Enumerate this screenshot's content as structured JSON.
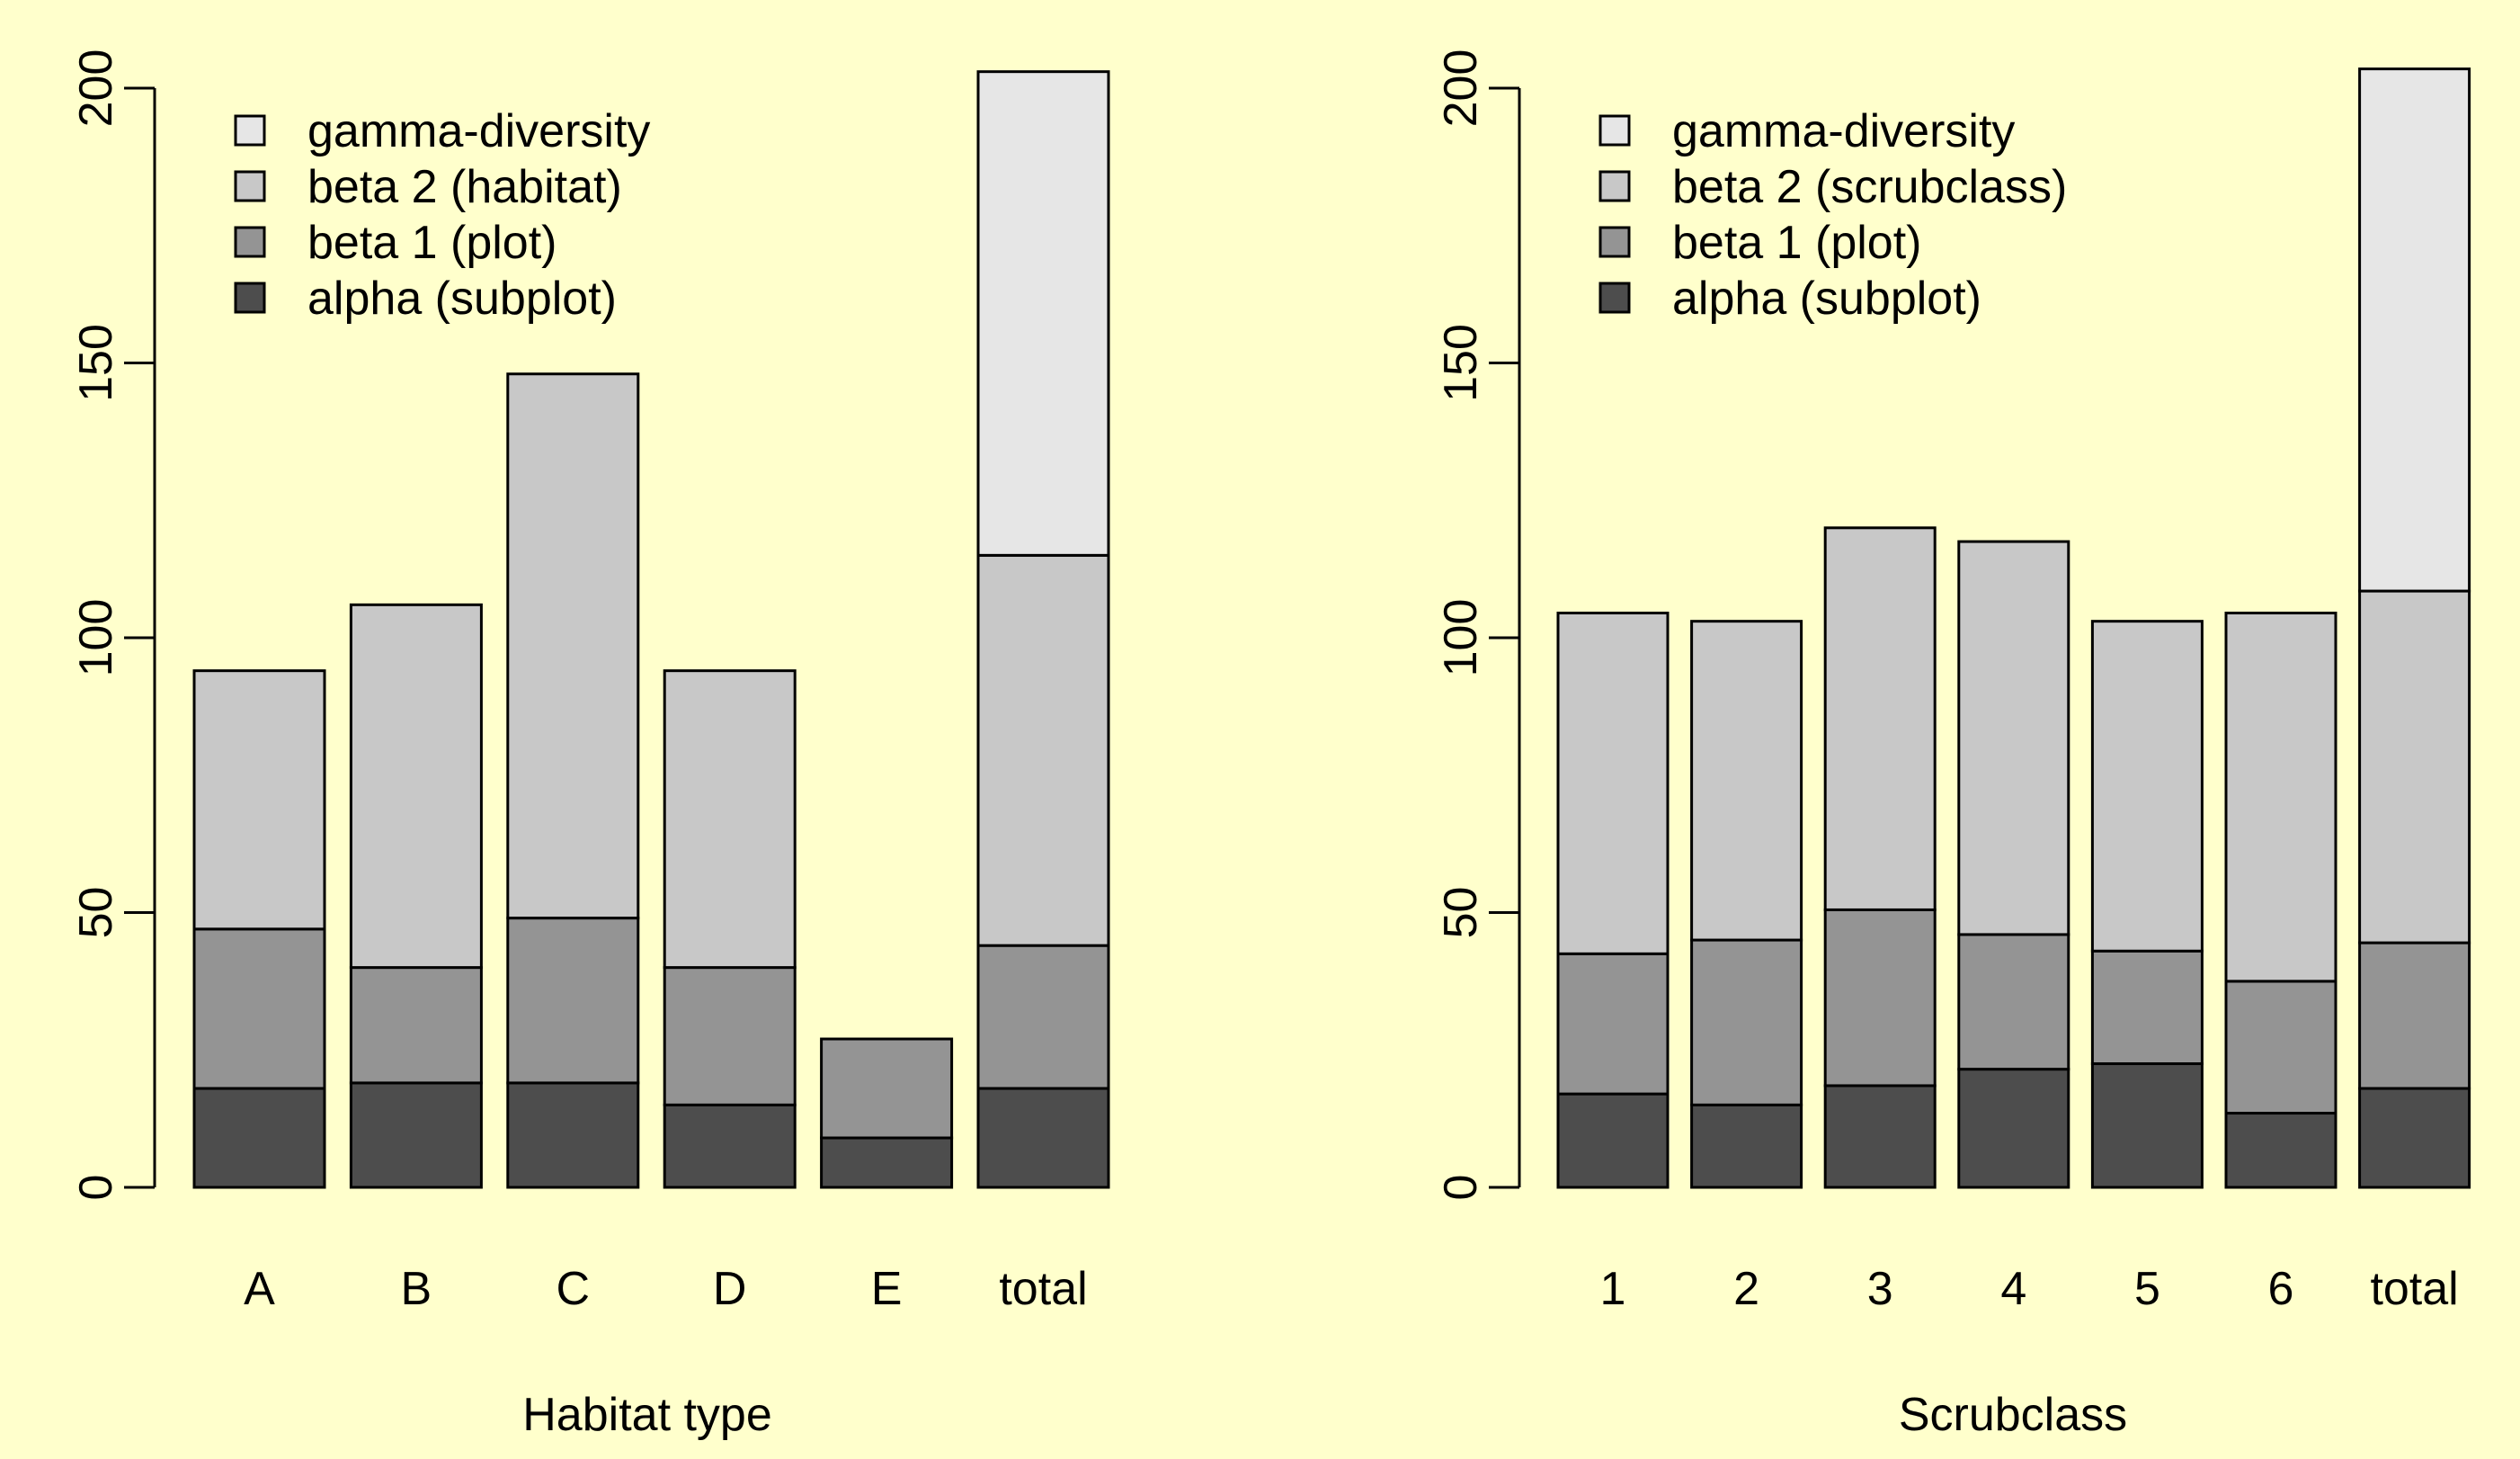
{
  "colors": {
    "background": "#ffffcc",
    "alpha": "#4d4d4d",
    "beta1": "#949494",
    "beta2": "#c8c8c8",
    "gamma": "#e6e6e6",
    "outline": "#000000"
  },
  "chart_data": [
    {
      "type": "bar",
      "stacked": true,
      "xlabel": "Habitat type",
      "ylabel": "",
      "ylim": [
        0,
        200
      ],
      "yticks": [
        "0",
        "50",
        "100",
        "150",
        "200"
      ],
      "legend_position": "top-left",
      "legend": [
        "gamma-diversity",
        "beta 2 (habitat)",
        "beta 1 (plot)",
        "alpha (subplot)"
      ],
      "categories": [
        "A",
        "B",
        "C",
        "D",
        "E",
        "total"
      ],
      "series": [
        {
          "name": "alpha (subplot)",
          "values": [
            18,
            19,
            19,
            15,
            9,
            18
          ]
        },
        {
          "name": "beta 1 (plot)",
          "values": [
            29,
            21,
            30,
            25,
            18,
            26
          ]
        },
        {
          "name": "beta 2 (habitat)",
          "values": [
            47,
            66,
            99,
            54,
            0,
            71
          ]
        },
        {
          "name": "gamma-diversity",
          "values": [
            0,
            0,
            0,
            0,
            0,
            88
          ]
        }
      ]
    },
    {
      "type": "bar",
      "stacked": true,
      "xlabel": "Scrubclass",
      "ylabel": "",
      "ylim": [
        0,
        200
      ],
      "yticks": [
        "0",
        "50",
        "100",
        "150",
        "200"
      ],
      "legend_position": "top-left",
      "legend": [
        "gamma-diversity",
        "beta 2 (scrubclass)",
        "beta 1 (plot)",
        "alpha (subplot)"
      ],
      "categories": [
        "1",
        "2",
        "3",
        "4",
        "5",
        "6",
        "total"
      ],
      "series": [
        {
          "name": "alpha (subplot)",
          "values": [
            17,
            15,
            18.5,
            21.5,
            22.5,
            13.5,
            18
          ]
        },
        {
          "name": "beta 1 (plot)",
          "values": [
            25.5,
            30,
            32,
            24.5,
            20.5,
            24,
            26.5
          ]
        },
        {
          "name": "beta 2 (scrubclass)",
          "values": [
            62,
            58,
            69.5,
            71.5,
            60,
            67,
            64
          ]
        },
        {
          "name": "gamma-diversity",
          "values": [
            0,
            0,
            0,
            0,
            0,
            0,
            95
          ]
        }
      ]
    }
  ]
}
